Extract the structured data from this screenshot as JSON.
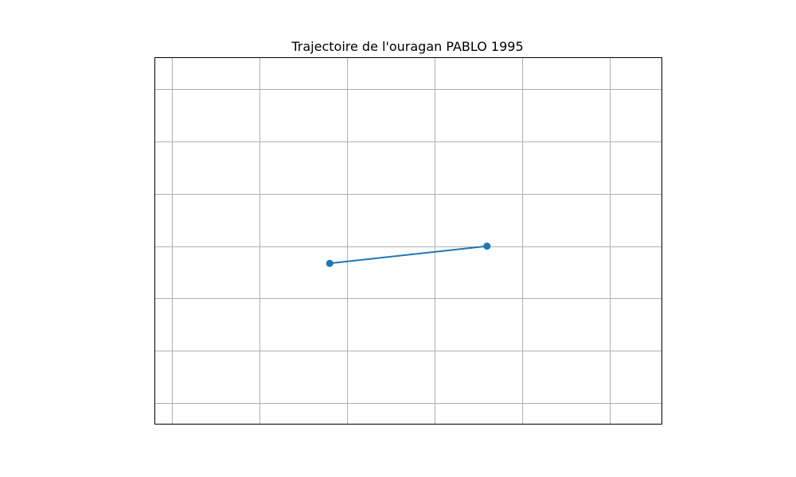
{
  "chart_data": {
    "type": "line",
    "title": "Trajectoire de l'ouragan PABLO 1995",
    "xlabel": "",
    "ylabel": "",
    "xlim": [
      -0.2,
      5.6
    ],
    "ylim": [
      -3.4,
      3.6
    ],
    "grid": true,
    "grid_x": [
      0,
      1,
      2,
      3,
      4,
      5
    ],
    "grid_y": [
      -3,
      -2,
      -1,
      0,
      1,
      2,
      3
    ],
    "tick_labels_visible": false,
    "series": [
      {
        "x": [
          1.8,
          3.6
        ],
        "y": [
          -0.33,
          0.0
        ],
        "markers": true
      }
    ],
    "colors": {
      "line": "#1f77b4",
      "grid": "#b0b0b0",
      "frame": "#000000"
    }
  }
}
